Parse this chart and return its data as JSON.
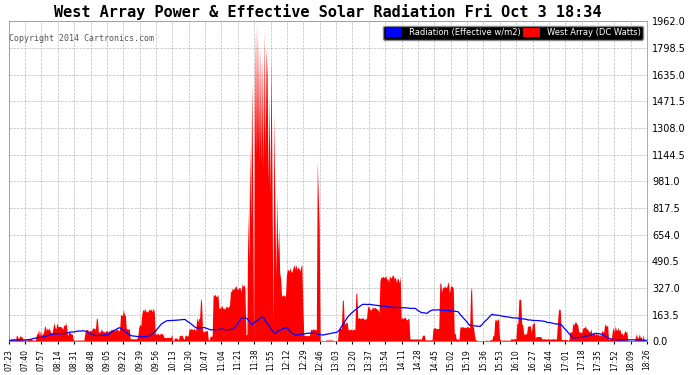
{
  "title": "West Array Power & Effective Solar Radiation Fri Oct 3 18:34",
  "title_fontsize": 11,
  "copyright_text": "Copyright 2014 Cartronics.com",
  "bg_color": "#ffffff",
  "plot_bg_color": "#ffffff",
  "grid_color": "#aaaaaa",
  "ymax": 1962.0,
  "ymin": 0.0,
  "yticks": [
    0.0,
    163.5,
    327.0,
    490.5,
    654.0,
    817.5,
    981.0,
    1144.5,
    1308.0,
    1471.5,
    1635.0,
    1798.5,
    1962.0
  ],
  "xtick_labels": [
    "07:23",
    "07:40",
    "07:57",
    "08:14",
    "08:31",
    "08:48",
    "09:05",
    "09:22",
    "09:39",
    "09:56",
    "10:13",
    "10:30",
    "10:47",
    "11:04",
    "11:21",
    "11:38",
    "11:55",
    "12:12",
    "12:29",
    "12:46",
    "13:03",
    "13:20",
    "13:37",
    "13:54",
    "14:11",
    "14:28",
    "14:45",
    "15:02",
    "15:19",
    "15:36",
    "15:53",
    "16:10",
    "16:27",
    "16:44",
    "17:01",
    "17:18",
    "17:35",
    "17:52",
    "18:09",
    "18:26"
  ],
  "legend_radiation_bg": "#0000ff",
  "legend_west_array_bg": "#ff0000",
  "legend_text_color": "#ffffff",
  "red_color": "#ff0000",
  "blue_color": "#0000ff",
  "title_color": "#000000",
  "tick_color": "#000000",
  "copyright_color": "#555555"
}
